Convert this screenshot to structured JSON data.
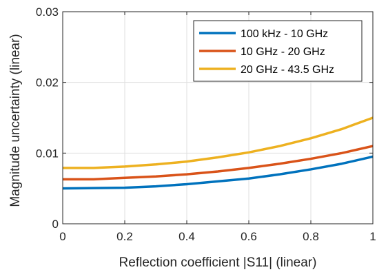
{
  "chart_data": {
    "type": "line",
    "xlabel": "Reflection coefficient |S11| (linear)",
    "ylabel": "Magnitude uncertainty (linear)",
    "xlim": [
      0,
      1
    ],
    "ylim": [
      0,
      0.03
    ],
    "x_ticks": [
      "0",
      "0.2",
      "0.4",
      "0.6",
      "0.8",
      "1"
    ],
    "y_ticks": [
      "0",
      "0.01",
      "0.02",
      "0.03"
    ],
    "x_tick_values": [
      0,
      0.2,
      0.4,
      0.6,
      0.8,
      1
    ],
    "y_tick_values": [
      0,
      0.01,
      0.02,
      0.03
    ],
    "grid": true,
    "legend_position": "top-right",
    "x": [
      0,
      0.1,
      0.2,
      0.3,
      0.4,
      0.5,
      0.6,
      0.7,
      0.8,
      0.9,
      1.0
    ],
    "series": [
      {
        "name": "100 kHz - 10 GHz",
        "color": "#0072BD",
        "values": [
          0.005,
          0.00505,
          0.0051,
          0.0053,
          0.0056,
          0.006,
          0.0064,
          0.007,
          0.0077,
          0.0085,
          0.0095
        ]
      },
      {
        "name": "10 GHz - 20 GHz",
        "color": "#D95319",
        "values": [
          0.0063,
          0.0063,
          0.0065,
          0.0067,
          0.007,
          0.0074,
          0.0079,
          0.0085,
          0.0092,
          0.01,
          0.011
        ]
      },
      {
        "name": "20 GHz - 43.5 GHz",
        "color": "#EDB120",
        "values": [
          0.0079,
          0.0079,
          0.0081,
          0.0084,
          0.0088,
          0.0094,
          0.0101,
          0.011,
          0.0121,
          0.0134,
          0.015
        ]
      }
    ]
  }
}
